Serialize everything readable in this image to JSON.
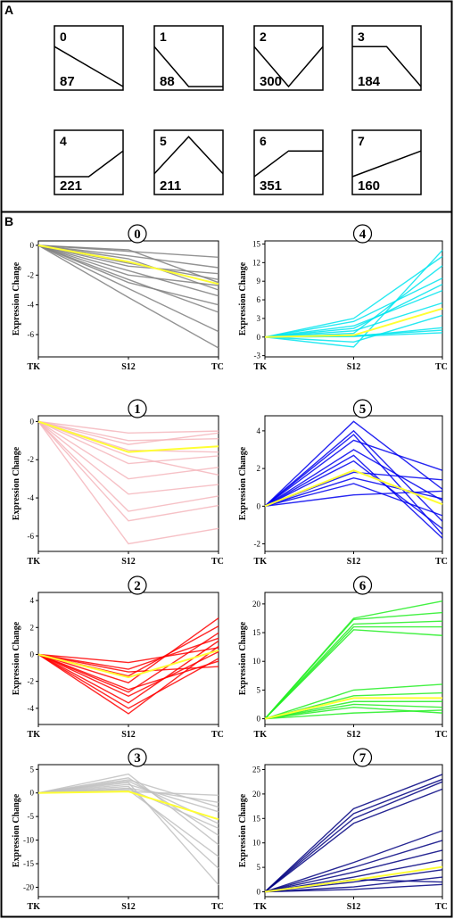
{
  "panels": {
    "a_letter": "A",
    "b_letter": "B"
  },
  "profiles": [
    {
      "id": "0",
      "count": "87",
      "shape": [
        0.7,
        0.0
      ]
    },
    {
      "id": "1",
      "count": "88",
      "shape": [
        0.7,
        0.0,
        0.0
      ]
    },
    {
      "id": "2",
      "count": "300",
      "shape": [
        0.7,
        0.0,
        0.7
      ]
    },
    {
      "id": "3",
      "count": "184",
      "shape": [
        0.7,
        0.7,
        0.0
      ]
    },
    {
      "id": "4",
      "count": "221",
      "shape": [
        0.25,
        0.25,
        0.7
      ]
    },
    {
      "id": "5",
      "count": "211",
      "shape": [
        0.3,
        0.95,
        0.3
      ]
    },
    {
      "id": "6",
      "count": "351",
      "shape": [
        0.25,
        0.7,
        0.7
      ]
    },
    {
      "id": "7",
      "count": "160",
      "shape": [
        0.25,
        0.7
      ]
    }
  ],
  "chart_data": [
    {
      "type": "line",
      "cluster": "0",
      "categories": [
        "TK",
        "S12",
        "TC"
      ],
      "ylabel": "Expression Change",
      "ylim": [
        -7.5,
        0.3
      ],
      "yticks": [
        0,
        -2,
        -4,
        -6
      ],
      "color": "#808080",
      "mean_color": "#ffff33",
      "mean": [
        0,
        -1.1,
        -2.6
      ],
      "series": [
        {
          "values": [
            0,
            -0.4,
            -0.8
          ]
        },
        {
          "values": [
            0,
            -0.7,
            -1.5
          ]
        },
        {
          "values": [
            0,
            -1.2,
            -2.3
          ]
        },
        {
          "values": [
            0,
            -1.7,
            -3.4
          ]
        },
        {
          "values": [
            0,
            -2.3,
            -4.5
          ]
        },
        {
          "values": [
            0,
            -2.9,
            -5.8
          ]
        },
        {
          "values": [
            0,
            -3.5,
            -6.9
          ]
        },
        {
          "values": [
            0,
            -0.9,
            -3.0
          ]
        },
        {
          "values": [
            0,
            -1.4,
            -1.9
          ]
        },
        {
          "values": [
            0,
            -2.0,
            -2.7
          ]
        },
        {
          "values": [
            0,
            -0.3,
            -2.5
          ]
        },
        {
          "values": [
            0,
            -2.5,
            -4.0
          ]
        }
      ]
    },
    {
      "type": "line",
      "cluster": "1",
      "categories": [
        "TK",
        "S12",
        "TC"
      ],
      "ylabel": "Expression Change",
      "ylim": [
        -6.8,
        0.3
      ],
      "yticks": [
        0,
        -2,
        -4,
        -6
      ],
      "color": "#f4b6bc",
      "mean_color": "#ffff33",
      "mean": [
        0,
        -1.6,
        -1.3
      ],
      "series": [
        {
          "values": [
            0,
            -0.6,
            -0.5
          ]
        },
        {
          "values": [
            0,
            -1.0,
            -0.9
          ]
        },
        {
          "values": [
            0,
            -1.5,
            -1.6
          ]
        },
        {
          "values": [
            0,
            -2.2,
            -1.8
          ]
        },
        {
          "values": [
            0,
            -3.0,
            -2.4
          ]
        },
        {
          "values": [
            0,
            -3.8,
            -3.3
          ]
        },
        {
          "values": [
            0,
            -4.7,
            -3.9
          ]
        },
        {
          "values": [
            0,
            -5.2,
            -4.4
          ]
        },
        {
          "values": [
            0,
            -6.4,
            -5.6
          ]
        },
        {
          "values": [
            0,
            -1.8,
            -2.8
          ]
        },
        {
          "values": [
            0,
            -1.2,
            -0.6
          ]
        }
      ]
    },
    {
      "type": "line",
      "cluster": "2",
      "categories": [
        "TK",
        "S12",
        "TC"
      ],
      "ylabel": "Expression Change",
      "ylim": [
        -5.2,
        4.6
      ],
      "yticks": [
        4,
        2,
        0,
        -2,
        -4
      ],
      "color": "#ff0000",
      "mean_color": "#ffff33",
      "mean": [
        0,
        -1.7,
        0.3
      ],
      "series": [
        {
          "values": [
            0,
            -0.6,
            0.5
          ]
        },
        {
          "values": [
            0,
            -1.1,
            1.2
          ]
        },
        {
          "values": [
            0,
            -1.6,
            2.1
          ]
        },
        {
          "values": [
            0,
            -2.1,
            2.7
          ]
        },
        {
          "values": [
            0,
            -2.6,
            -0.5
          ]
        },
        {
          "values": [
            0,
            -3.1,
            0.2
          ]
        },
        {
          "values": [
            0,
            -3.6,
            1.0
          ]
        },
        {
          "values": [
            0,
            -4.0,
            -0.3
          ]
        },
        {
          "values": [
            0,
            -4.4,
            0.6
          ]
        },
        {
          "values": [
            0,
            -1.3,
            -0.9
          ]
        },
        {
          "values": [
            0,
            -2.8,
            1.6
          ]
        }
      ]
    },
    {
      "type": "line",
      "cluster": "3",
      "categories": [
        "TK",
        "S12",
        "TC"
      ],
      "ylabel": "Expression Change",
      "ylim": [
        -22,
        6
      ],
      "yticks": [
        5,
        0,
        -5,
        -10,
        -15,
        -20
      ],
      "color": "#c0c0c0",
      "mean_color": "#ffff33",
      "mean": [
        0,
        0.3,
        -5.6
      ],
      "series": [
        {
          "values": [
            0,
            0.3,
            -0.5
          ]
        },
        {
          "values": [
            0,
            1.0,
            -2.0
          ]
        },
        {
          "values": [
            0,
            1.8,
            -4.0
          ]
        },
        {
          "values": [
            0,
            2.5,
            -6.5
          ]
        },
        {
          "values": [
            0,
            3.2,
            -9.0
          ]
        },
        {
          "values": [
            0,
            4.0,
            -11.0
          ]
        },
        {
          "values": [
            0,
            0.6,
            -13.5
          ]
        },
        {
          "values": [
            0,
            1.4,
            -16.0
          ]
        },
        {
          "values": [
            0,
            2.2,
            -19.5
          ]
        },
        {
          "values": [
            0,
            0.9,
            -7.5
          ]
        },
        {
          "values": [
            0,
            2.8,
            -3.0
          ]
        }
      ]
    },
    {
      "type": "line",
      "cluster": "4",
      "categories": [
        "TK",
        "S12",
        "TC"
      ],
      "ylabel": "Expression Change",
      "ylim": [
        -3.2,
        15.5
      ],
      "yticks": [
        15,
        12,
        9,
        6,
        3,
        0,
        -3
      ],
      "color": "#00e5ee",
      "mean_color": "#ffff33",
      "mean": [
        0,
        0.3,
        4.6
      ],
      "series": [
        {
          "values": [
            0,
            0.1,
            0.7
          ]
        },
        {
          "values": [
            0,
            0.2,
            1.1
          ]
        },
        {
          "values": [
            0,
            0.1,
            1.5
          ]
        },
        {
          "values": [
            0,
            -0.8,
            3.5
          ]
        },
        {
          "values": [
            0,
            1.0,
            5.5
          ]
        },
        {
          "values": [
            0,
            1.8,
            7.5
          ]
        },
        {
          "values": [
            0,
            2.5,
            9.5
          ]
        },
        {
          "values": [
            0,
            0.6,
            11.5
          ]
        },
        {
          "values": [
            0,
            3.0,
            13.0
          ]
        },
        {
          "values": [
            0,
            -1.6,
            14.0
          ]
        },
        {
          "values": [
            0,
            1.4,
            8.5
          ]
        }
      ]
    },
    {
      "type": "line",
      "cluster": "5",
      "categories": [
        "TK",
        "S12",
        "TC"
      ],
      "ylabel": "Expression Change",
      "ylim": [
        -2.4,
        4.8
      ],
      "yticks": [
        4,
        2,
        0,
        -2
      ],
      "color": "#0000ee",
      "mean_color": "#ffff33",
      "mean": [
        0,
        1.9,
        0.1
      ],
      "series": [
        {
          "values": [
            0,
            0.6,
            0.8
          ]
        },
        {
          "values": [
            0,
            1.2,
            -0.5
          ]
        },
        {
          "values": [
            0,
            1.8,
            1.4
          ]
        },
        {
          "values": [
            0,
            2.4,
            -1.2
          ]
        },
        {
          "values": [
            0,
            3.0,
            0.3
          ]
        },
        {
          "values": [
            0,
            3.5,
            1.9
          ]
        },
        {
          "values": [
            0,
            4.0,
            -0.8
          ]
        },
        {
          "values": [
            0,
            4.5,
            0.9
          ]
        },
        {
          "values": [
            0,
            2.7,
            -1.7
          ]
        },
        {
          "values": [
            0,
            1.5,
            0.4
          ]
        },
        {
          "values": [
            0,
            3.8,
            -1.5
          ]
        }
      ]
    },
    {
      "type": "line",
      "cluster": "6",
      "categories": [
        "TK",
        "S12",
        "TC"
      ],
      "ylabel": "Expression Change",
      "ylim": [
        -1,
        22
      ],
      "yticks": [
        20,
        15,
        10,
        5,
        0
      ],
      "color": "#22ee22",
      "mean_color": "#ffff33",
      "mean": [
        0,
        3.6,
        3.6
      ],
      "series": [
        {
          "values": [
            0,
            1.0,
            1.5
          ]
        },
        {
          "values": [
            0,
            2.0,
            1.0
          ]
        },
        {
          "values": [
            0,
            3.0,
            3.0
          ]
        },
        {
          "values": [
            0,
            4.0,
            4.5
          ]
        },
        {
          "values": [
            0,
            5.0,
            6.0
          ]
        },
        {
          "values": [
            0,
            2.5,
            2.0
          ]
        },
        {
          "values": [
            0,
            15.5,
            14.5
          ]
        },
        {
          "values": [
            0,
            16.5,
            17.0
          ]
        },
        {
          "values": [
            0,
            17.3,
            18.5
          ]
        },
        {
          "values": [
            0,
            17.5,
            20.5
          ]
        },
        {
          "values": [
            0,
            16.0,
            16.0
          ]
        }
      ]
    },
    {
      "type": "line",
      "cluster": "7",
      "categories": [
        "TK",
        "S12",
        "TC"
      ],
      "ylabel": "Expression Change",
      "ylim": [
        -1,
        26
      ],
      "yticks": [
        25,
        20,
        15,
        10,
        5,
        0
      ],
      "color": "#000080",
      "mean_color": "#ffff33",
      "mean": [
        0,
        2.4,
        5.1
      ],
      "series": [
        {
          "values": [
            0,
            0.5,
            1.5
          ]
        },
        {
          "values": [
            0,
            1.0,
            3.0
          ]
        },
        {
          "values": [
            0,
            2.0,
            4.5
          ]
        },
        {
          "values": [
            0,
            3.0,
            6.5
          ]
        },
        {
          "values": [
            0,
            4.0,
            8.5
          ]
        },
        {
          "values": [
            0,
            5.0,
            10.5
          ]
        },
        {
          "values": [
            0,
            6.0,
            12.5
          ]
        },
        {
          "values": [
            0,
            14.0,
            21.0
          ]
        },
        {
          "values": [
            0,
            15.0,
            22.5
          ]
        },
        {
          "values": [
            0,
            16.0,
            23.0
          ]
        },
        {
          "values": [
            0,
            17.0,
            24.0
          ]
        },
        {
          "values": [
            0,
            2.5,
            2.0
          ]
        }
      ]
    }
  ]
}
